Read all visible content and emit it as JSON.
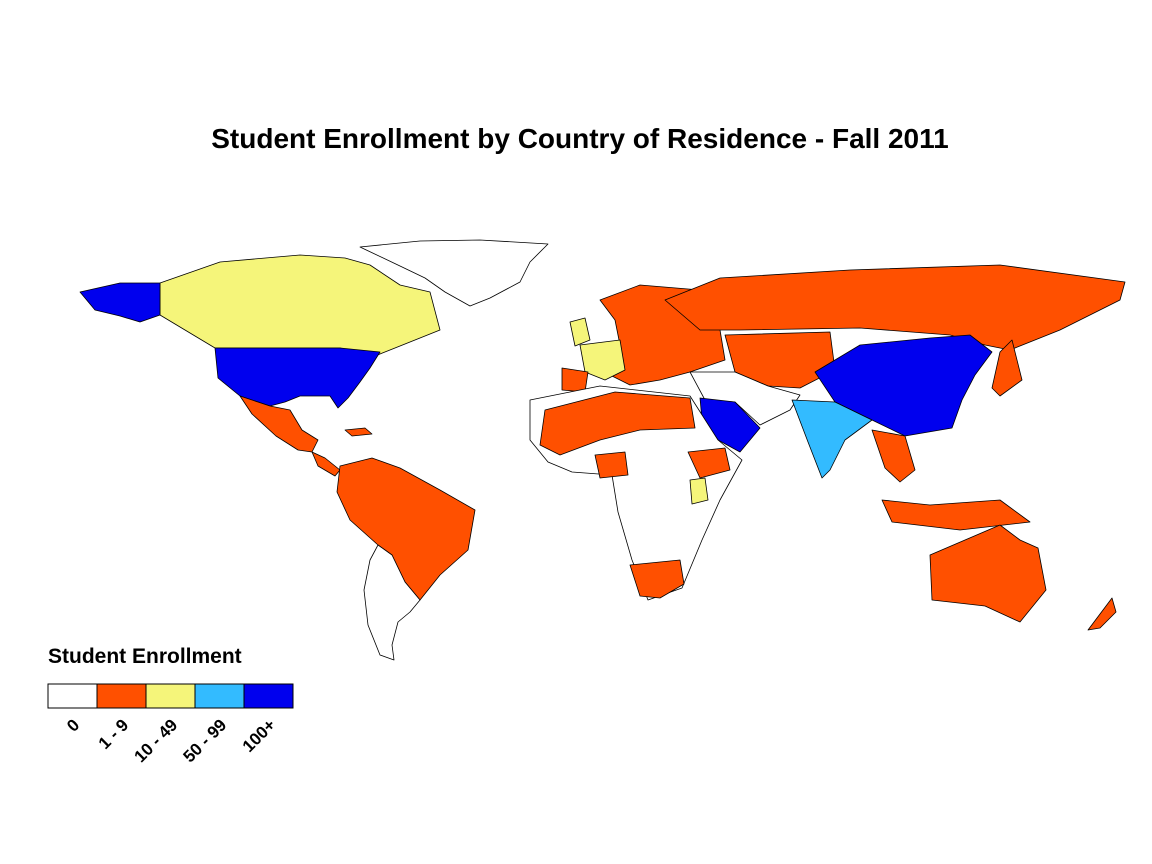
{
  "title": "Student Enrollment by Country of Residence - Fall 2011",
  "legend": {
    "title": "Student Enrollment",
    "classes": [
      {
        "label": "0",
        "color": "#ffffff"
      },
      {
        "label": "1 - 9",
        "color": "#ff5000"
      },
      {
        "label": "10 - 49",
        "color": "#f5f57a"
      },
      {
        "label": "50 - 99",
        "color": "#33bbff"
      },
      {
        "label": "100+",
        "color": "#0000ee"
      }
    ]
  }
}
